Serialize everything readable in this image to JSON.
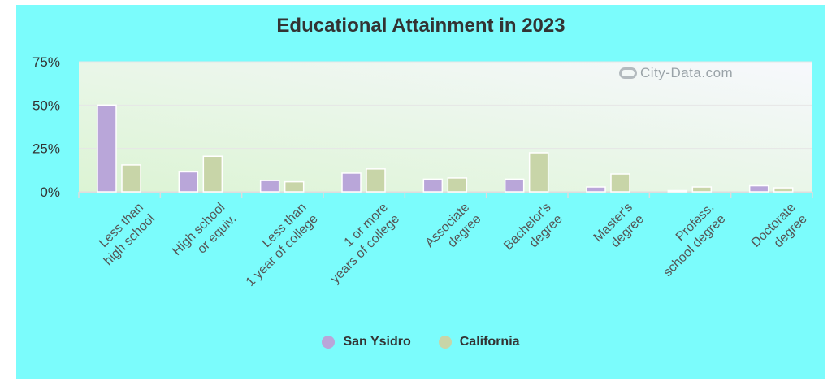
{
  "chart_data": {
    "type": "bar",
    "title": "Educational Attainment in 2023",
    "categories": [
      [
        "Less than",
        "high school"
      ],
      [
        "High school",
        "or equiv."
      ],
      [
        "Less than",
        "1 year of college"
      ],
      [
        "1 or more",
        "years of college"
      ],
      [
        "Associate",
        "degree"
      ],
      [
        "Bachelor's",
        "degree"
      ],
      [
        "Master's",
        "degree"
      ],
      [
        "Profess.",
        "school degree"
      ],
      [
        "Doctorate",
        "degree"
      ]
    ],
    "series": [
      {
        "name": "San Ysidro",
        "color": "#b9a6d9",
        "values": [
          50,
          11.5,
          6.5,
          10.8,
          7.3,
          7.3,
          2.8,
          0.7,
          3.5
        ]
      },
      {
        "name": "California",
        "color": "#c8d5a8",
        "values": [
          15.5,
          20.5,
          5.8,
          13.2,
          8.0,
          22.5,
          10.3,
          2.8,
          2.3
        ]
      }
    ],
    "yticks": [
      "0%",
      "25%",
      "50%",
      "75%"
    ],
    "ylim": [
      0,
      75
    ],
    "watermark": "City-Data.com"
  },
  "colors": {
    "panel_background": "#7bfcfc",
    "plot_gradient_start": "#dff5d8",
    "plot_gradient_end": "#f6f8fc"
  }
}
